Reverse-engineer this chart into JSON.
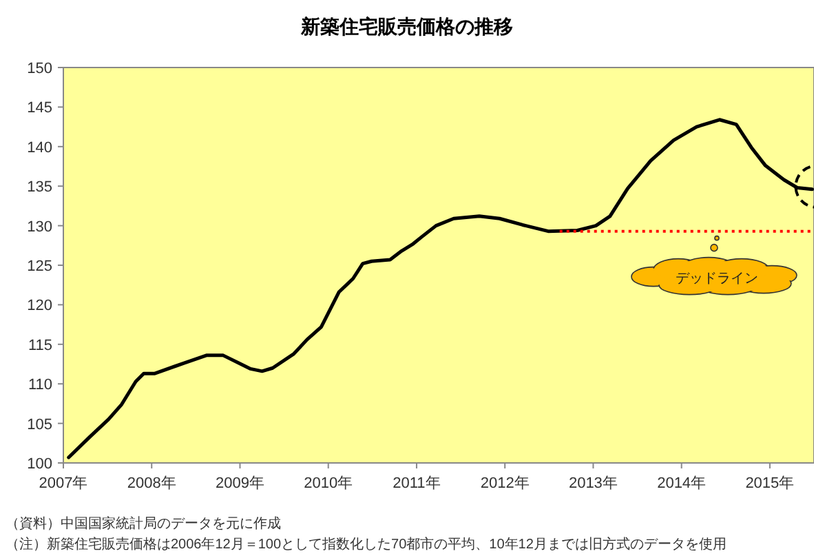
{
  "chart_data": {
    "type": "line",
    "title": "新築住宅販売価格の推移",
    "series": [
      {
        "color": "#000000",
        "line_style": "solid",
        "x": [
          2007.06,
          2007.3,
          2007.51,
          2007.66,
          2007.82,
          2007.91,
          2008.03,
          2008.36,
          2008.62,
          2008.81,
          2008.99,
          2009.12,
          2009.25,
          2009.37,
          2009.61,
          2009.76,
          2009.92,
          2010.12,
          2010.28,
          2010.39,
          2010.49,
          2010.7,
          2010.83,
          2010.96,
          2011.06,
          2011.22,
          2011.42,
          2011.71,
          2011.94,
          2012.2,
          2012.49,
          2012.82,
          2013.03,
          2013.19,
          2013.39,
          2013.65,
          2013.91,
          2014.17,
          2014.43,
          2014.62,
          2014.79,
          2014.95,
          2015.16,
          2015.31,
          2015.48
        ],
        "values": [
          100.7,
          103.3,
          105.5,
          107.4,
          110.3,
          111.3,
          111.3,
          112.6,
          113.6,
          113.6,
          112.6,
          111.9,
          111.6,
          112.0,
          113.8,
          115.6,
          117.2,
          121.6,
          123.3,
          125.2,
          125.5,
          125.7,
          126.8,
          127.7,
          128.6,
          130.0,
          130.9,
          131.2,
          130.9,
          130.1,
          129.3,
          129.4,
          130.0,
          131.2,
          134.7,
          138.2,
          140.8,
          142.5,
          143.4,
          142.8,
          139.9,
          137.6,
          135.8,
          134.8,
          134.6
        ]
      },
      {
        "color": "#ff0000",
        "line_style": "dotted",
        "x": [
          2012.62,
          2015.5
        ],
        "values": [
          129.3,
          129.3
        ]
      }
    ],
    "xlim": [
      2007,
      2015.5
    ],
    "ylim": [
      100,
      150
    ],
    "xticks": [
      {
        "value": 2007,
        "label": "2007年"
      },
      {
        "value": 2008,
        "label": "2008年"
      },
      {
        "value": 2009,
        "label": "2009年"
      },
      {
        "value": 2010,
        "label": "2010年"
      },
      {
        "value": 2011,
        "label": "2011年"
      },
      {
        "value": 2012,
        "label": "2012年"
      },
      {
        "value": 2013,
        "label": "2013年"
      },
      {
        "value": 2014,
        "label": "2014年"
      },
      {
        "value": 2015,
        "label": "2015年"
      }
    ],
    "yticks": [
      100,
      105,
      110,
      115,
      120,
      125,
      130,
      135,
      140,
      145,
      150
    ],
    "annotations": [
      {
        "text": "デッドライン",
        "x": 2014.4,
        "y": 129.3
      },
      "（資料）中国国家統計局のデータを元に作成",
      "（注）新築住宅販売価格は2006年12月＝100として指数化した70都市の平均、10年12月までは旧方式のデータを使用"
    ]
  }
}
